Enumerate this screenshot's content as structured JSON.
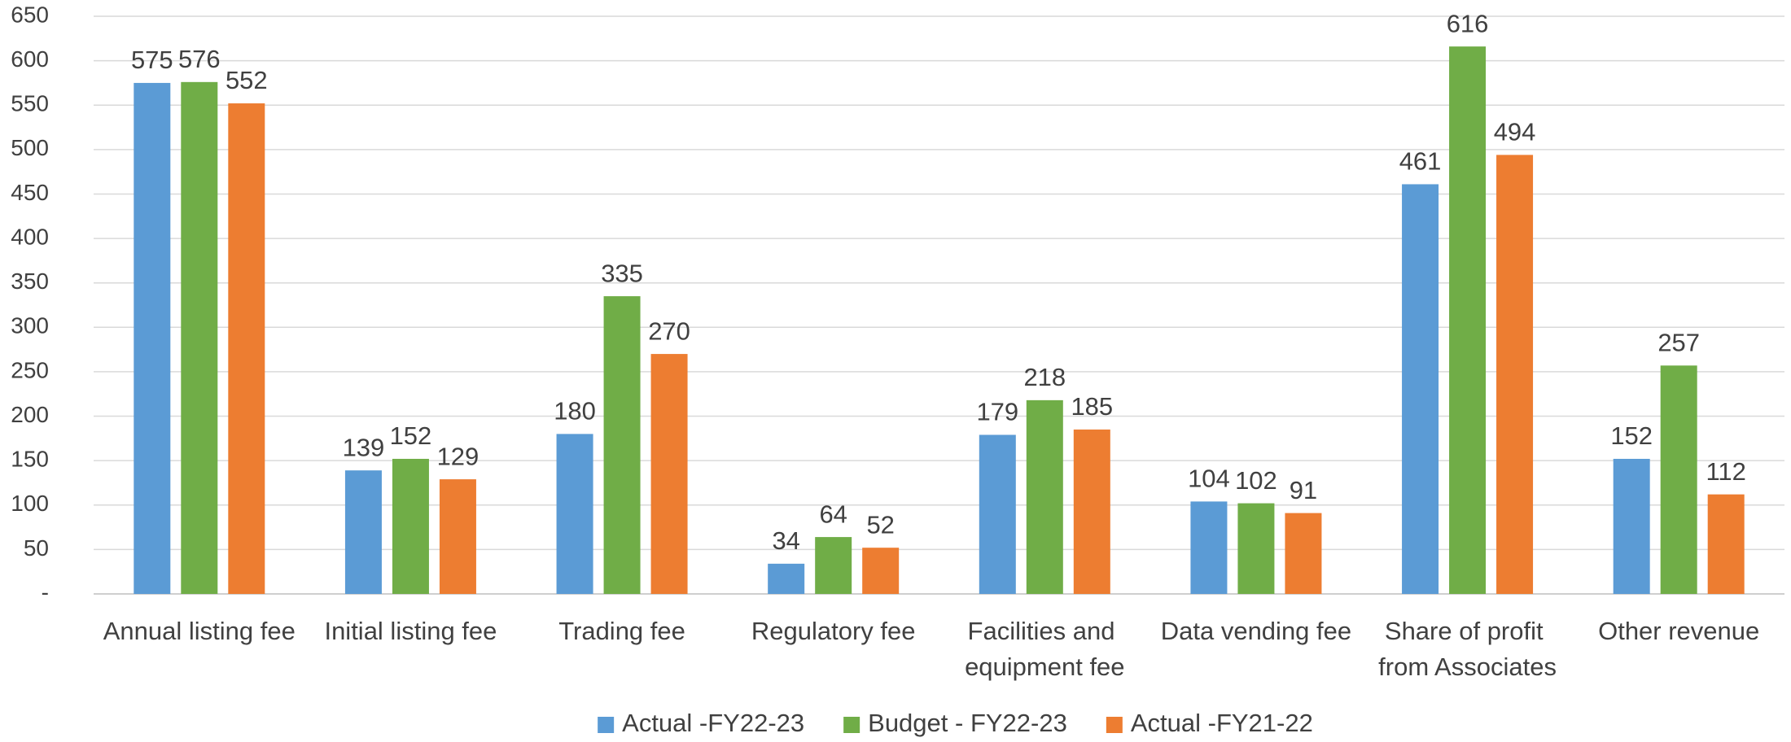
{
  "chart_data": {
    "type": "bar",
    "categories": [
      "Annual listing fee",
      "Initial listing fee",
      "Trading fee",
      "Regulatory fee",
      "Facilities and equipment fee",
      "Data vending fee",
      "Share of profit from Associates",
      "Other revenue"
    ],
    "series": [
      {
        "name": "Actual -FY22-23",
        "color": "#5b9bd5",
        "values": [
          575,
          139,
          180,
          34,
          179,
          104,
          461,
          152
        ]
      },
      {
        "name": "Budget - FY22-23",
        "color": "#70ad47",
        "values": [
          576,
          152,
          335,
          64,
          218,
          102,
          616,
          257
        ]
      },
      {
        "name": "Actual -FY21-22",
        "color": "#ed7d31",
        "values": [
          552,
          129,
          270,
          52,
          185,
          91,
          494,
          112
        ]
      }
    ],
    "ylim": [
      0,
      650
    ],
    "yticks": [
      {
        "value": 0,
        "label": "-"
      },
      50,
      100,
      150,
      200,
      250,
      300,
      350,
      400,
      450,
      500,
      550,
      600,
      650
    ],
    "grid": true,
    "legend": "bottom"
  }
}
